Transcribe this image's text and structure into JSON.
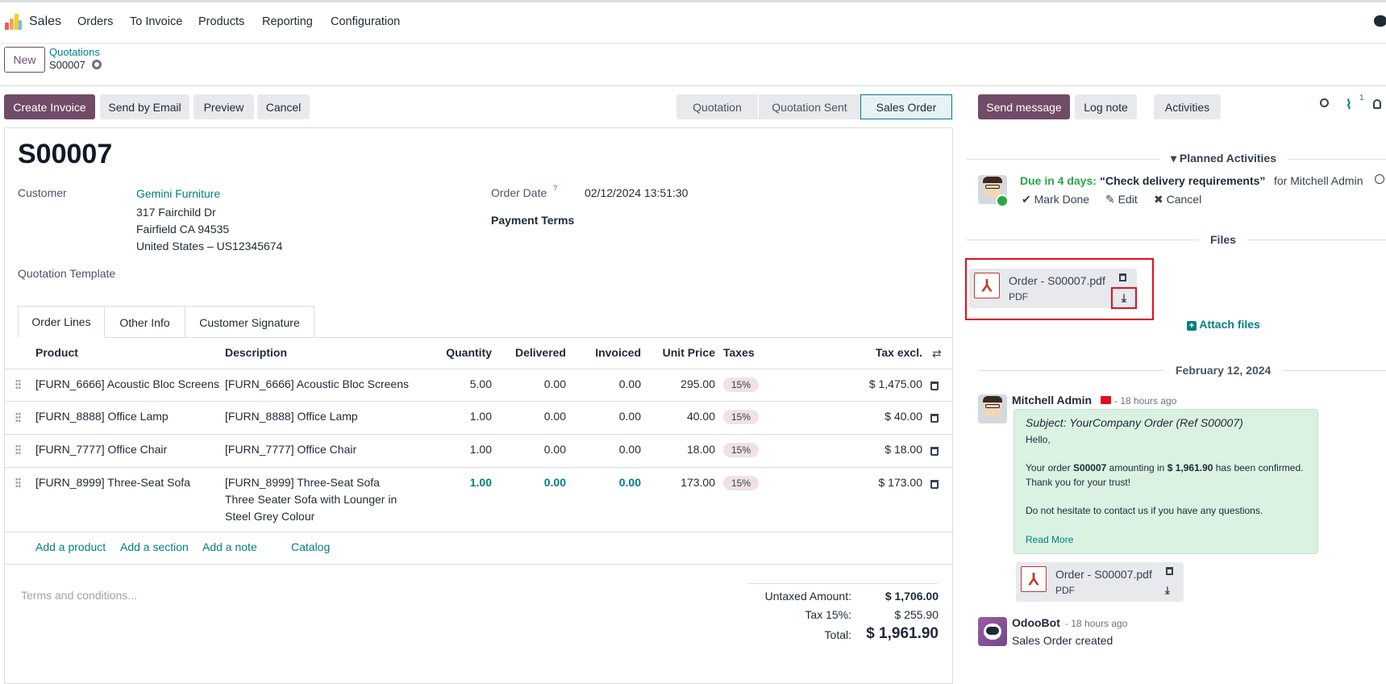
{
  "nav": {
    "app": "Sales",
    "items": [
      "Orders",
      "To Invoice",
      "Products",
      "Reporting",
      "Configuration"
    ]
  },
  "control": {
    "new_label": "New",
    "breadcrumb_parent": "Quotations",
    "breadcrumb_current": "S00007"
  },
  "actions": {
    "create_invoice": "Create Invoice",
    "send_by_email": "Send by Email",
    "preview": "Preview",
    "cancel": "Cancel"
  },
  "stages": [
    "Quotation",
    "Quotation Sent",
    "Sales Order"
  ],
  "form": {
    "title": "S00007",
    "customer_label": "Customer",
    "customer_name": "Gemini Furniture",
    "address1": "317 Fairchild Dr",
    "address2": "Fairfield CA 94535",
    "address3": "United States – US12345674",
    "order_date_label": "Order Date",
    "order_date_help": "?",
    "order_date": "02/12/2024 13:51:30",
    "payment_terms_label": "Payment Terms",
    "quotation_template_label": "Quotation Template"
  },
  "tabs": [
    "Order Lines",
    "Other Info",
    "Customer Signature"
  ],
  "table": {
    "headers": {
      "product": "Product",
      "description": "Description",
      "quantity": "Quantity",
      "delivered": "Delivered",
      "invoiced": "Invoiced",
      "unit_price": "Unit Price",
      "taxes": "Taxes",
      "tax_excl": "Tax excl."
    },
    "rows": [
      {
        "product": "[FURN_6666] Acoustic Bloc Screens",
        "description": "[FURN_6666] Acoustic Bloc Screens",
        "desc2": "",
        "desc3": "",
        "quantity": "5.00",
        "delivered": "0.00",
        "invoiced": "0.00",
        "unit_price": "295.00",
        "tax": "15%",
        "subtotal": "$ 1,475.00"
      },
      {
        "product": "[FURN_8888] Office Lamp",
        "description": "[FURN_8888] Office Lamp",
        "desc2": "",
        "desc3": "",
        "quantity": "1.00",
        "delivered": "0.00",
        "invoiced": "0.00",
        "unit_price": "40.00",
        "tax": "15%",
        "subtotal": "$ 40.00"
      },
      {
        "product": "[FURN_7777] Office Chair",
        "description": "[FURN_7777] Office Chair",
        "desc2": "",
        "desc3": "",
        "quantity": "1.00",
        "delivered": "0.00",
        "invoiced": "0.00",
        "unit_price": "18.00",
        "tax": "15%",
        "subtotal": "$ 18.00"
      },
      {
        "product": "[FURN_8999] Three-Seat Sofa",
        "description": "[FURN_8999] Three-Seat Sofa",
        "desc2": "Three Seater Sofa with Lounger in",
        "desc3": "Steel Grey Colour",
        "quantity": "1.00",
        "delivered": "0.00",
        "invoiced": "0.00",
        "unit_price": "173.00",
        "tax": "15%",
        "subtotal": "$ 173.00"
      }
    ]
  },
  "line_actions": {
    "add_product": "Add a product",
    "add_section": "Add a section",
    "add_note": "Add a note",
    "catalog": "Catalog"
  },
  "terms_placeholder": "Terms and conditions...",
  "totals": {
    "untaxed_label": "Untaxed Amount:",
    "untaxed": "$ 1,706.00",
    "tax_label": "Tax 15%:",
    "tax": "$ 255.90",
    "total_label": "Total:",
    "total": "$ 1,961.90"
  },
  "chatter": {
    "send_message": "Send message",
    "log_note": "Log note",
    "activities": "Activities",
    "attachment_count": "1",
    "planned_title": "Planned Activities",
    "activity": {
      "due": "Due in 4 days:",
      "summary": "“Check delivery requirements”",
      "for": "for Mitchell Admin",
      "mark_done": "Mark Done",
      "edit": "Edit",
      "cancel": "Cancel"
    },
    "files_title": "Files",
    "file": {
      "name": "Order - S00007.pdf",
      "type": "PDF"
    },
    "attach_files": "Attach files",
    "date_sep": "February 12, 2024",
    "messages": [
      {
        "author": "Mitchell Admin",
        "time": "- 18 hours ago",
        "subject": "Subject: YourCompany Order (Ref S00007)",
        "hello": "Hello,",
        "line1_a": "Your order ",
        "line1_b": "S00007",
        "line1_c": " amounting in ",
        "line1_d": "$ 1,961.90",
        "line1_e": " has been confirmed.",
        "line2": "Thank you for your trust!",
        "line3": "Do not hesitate to contact us if you have any questions.",
        "read_more": "Read More",
        "file_name": "Order - S00007.pdf",
        "file_type": "PDF"
      },
      {
        "author": "OdooBot",
        "time": "- 18 hours ago",
        "body": "Sales Order created"
      }
    ]
  },
  "colors": {
    "brand": "#714b67",
    "link": "#017e84",
    "due": "#28a745"
  }
}
